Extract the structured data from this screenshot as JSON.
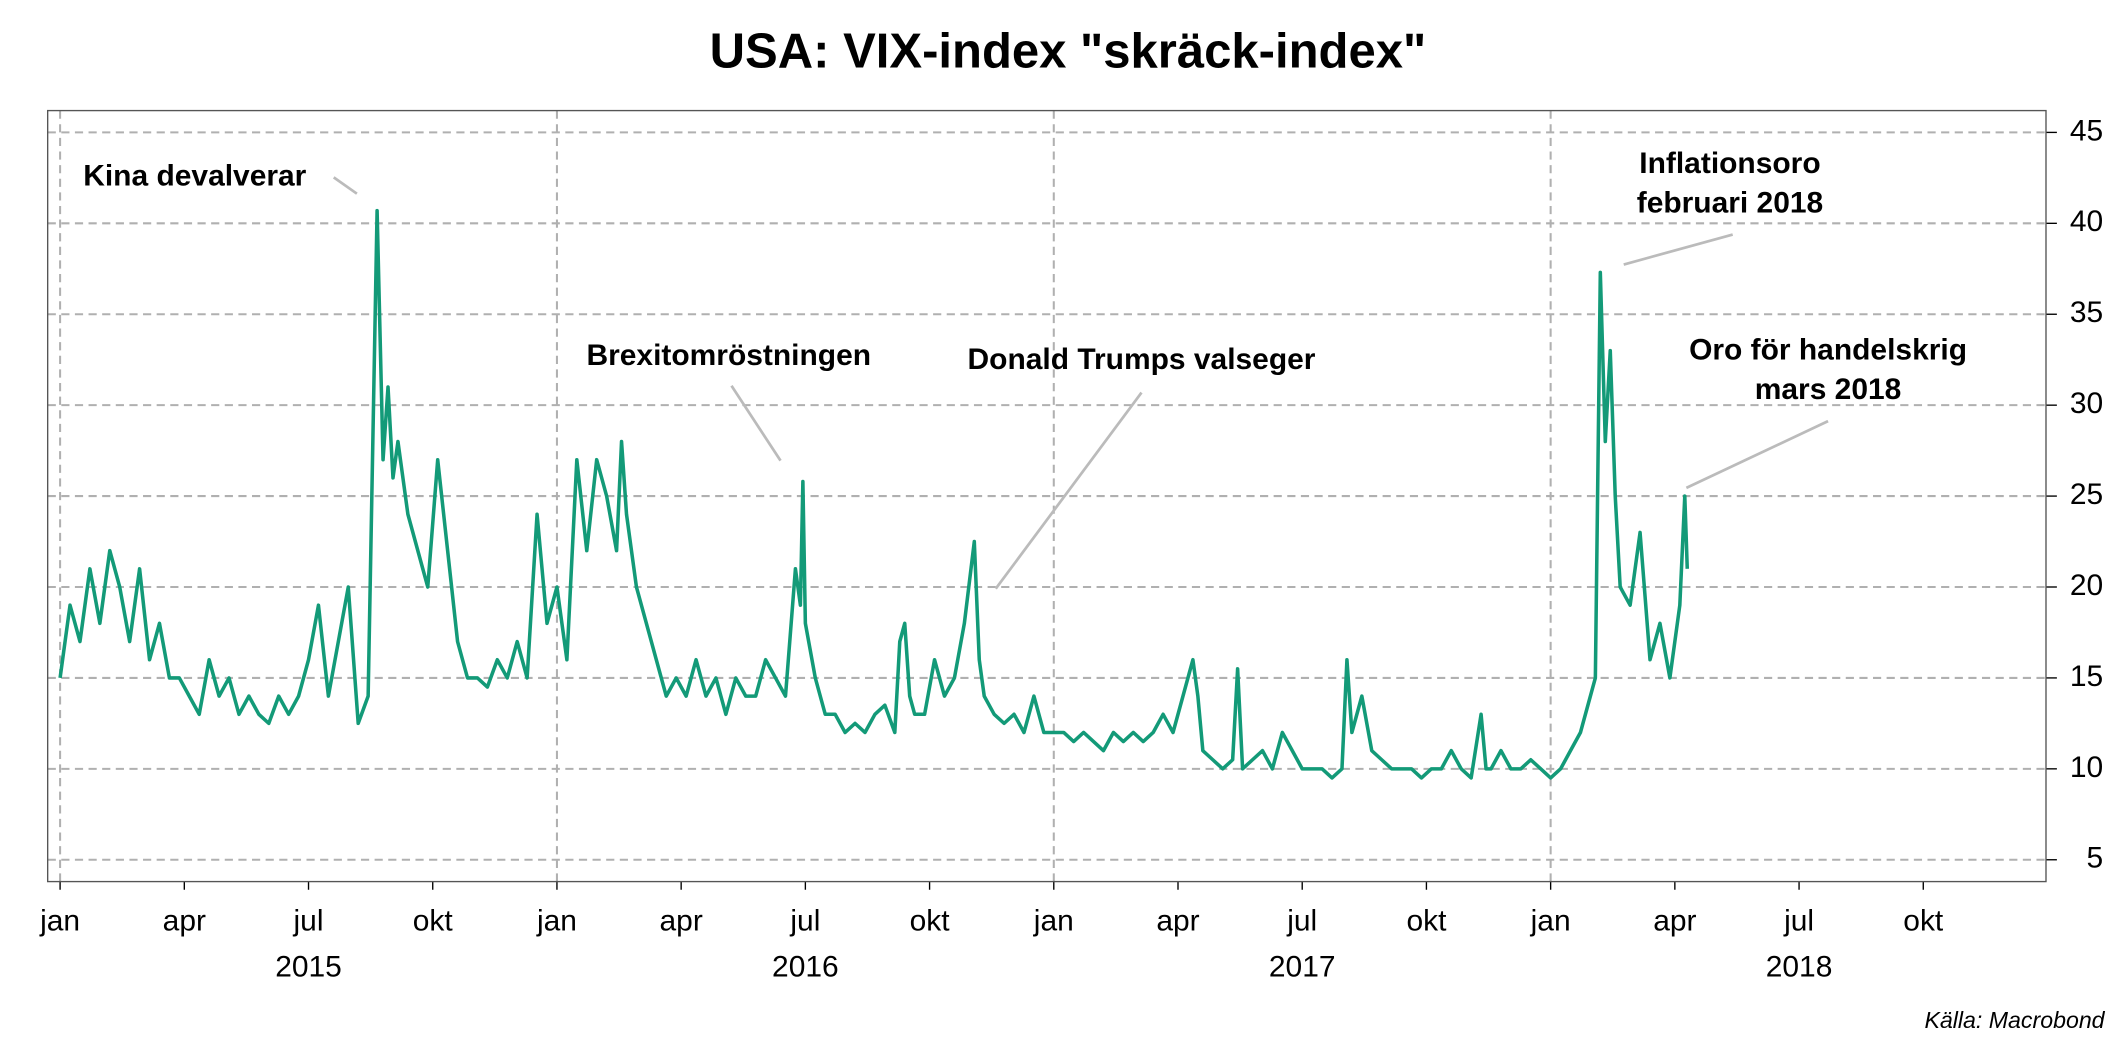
{
  "chart_data": {
    "type": "line",
    "title": "USA: VIX-index \"skräck-index\"",
    "source": "Källa: Macrobond",
    "xlim": [
      2014.975,
      2018.997
    ],
    "ylim": [
      3.8,
      46.2
    ],
    "yticks": [
      5,
      10,
      15,
      20,
      25,
      30,
      35,
      40,
      45
    ],
    "xticks": [
      {
        "value": 2015.0,
        "label": "jan"
      },
      {
        "value": 2015.25,
        "label": "apr"
      },
      {
        "value": 2015.5,
        "label": "jul"
      },
      {
        "value": 2015.75,
        "label": "okt"
      },
      {
        "value": 2016.0,
        "label": "jan"
      },
      {
        "value": 2016.25,
        "label": "apr"
      },
      {
        "value": 2016.5,
        "label": "jul"
      },
      {
        "value": 2016.75,
        "label": "okt"
      },
      {
        "value": 2017.0,
        "label": "jan"
      },
      {
        "value": 2017.25,
        "label": "apr"
      },
      {
        "value": 2017.5,
        "label": "jul"
      },
      {
        "value": 2017.75,
        "label": "okt"
      },
      {
        "value": 2018.0,
        "label": "jan"
      },
      {
        "value": 2018.25,
        "label": "apr"
      },
      {
        "value": 2018.5,
        "label": "jul"
      },
      {
        "value": 2018.75,
        "label": "okt"
      }
    ],
    "year_ticks": [
      {
        "value": 2015.5,
        "label": "2015"
      },
      {
        "value": 2016.5,
        "label": "2016"
      },
      {
        "value": 2017.5,
        "label": "2017"
      },
      {
        "value": 2018.5,
        "label": "2018"
      }
    ],
    "grid": true,
    "x": [
      2015.0,
      2015.02,
      2015.04,
      2015.06,
      2015.08,
      2015.1,
      2015.12,
      2015.14,
      2015.16,
      2015.18,
      2015.2,
      2015.22,
      2015.24,
      2015.26,
      2015.28,
      2015.3,
      2015.32,
      2015.34,
      2015.36,
      2015.38,
      2015.4,
      2015.42,
      2015.44,
      2015.46,
      2015.48,
      2015.5,
      2015.52,
      2015.54,
      2015.56,
      2015.58,
      2015.6,
      2015.62,
      2015.638,
      2015.65,
      2015.66,
      2015.67,
      2015.68,
      2015.7,
      2015.72,
      2015.74,
      2015.76,
      2015.78,
      2015.8,
      2015.82,
      2015.84,
      2015.86,
      2015.88,
      2015.9,
      2015.92,
      2015.94,
      2015.96,
      2015.98,
      2016.0,
      2016.02,
      2016.04,
      2016.06,
      2016.08,
      2016.1,
      2016.12,
      2016.13,
      2016.14,
      2016.16,
      2016.18,
      2016.2,
      2016.22,
      2016.24,
      2016.26,
      2016.28,
      2016.3,
      2016.32,
      2016.34,
      2016.36,
      2016.38,
      2016.4,
      2016.42,
      2016.44,
      2016.46,
      2016.48,
      2016.49,
      2016.495,
      2016.5,
      2016.52,
      2016.54,
      2016.56,
      2016.58,
      2016.6,
      2016.62,
      2016.64,
      2016.66,
      2016.68,
      2016.69,
      2016.7,
      2016.71,
      2016.72,
      2016.74,
      2016.76,
      2016.78,
      2016.8,
      2016.82,
      2016.84,
      2016.85,
      2016.86,
      2016.88,
      2016.9,
      2016.92,
      2016.94,
      2016.96,
      2016.98,
      2017.0,
      2017.02,
      2017.04,
      2017.06,
      2017.08,
      2017.1,
      2017.12,
      2017.14,
      2017.16,
      2017.18,
      2017.2,
      2017.22,
      2017.24,
      2017.26,
      2017.28,
      2017.29,
      2017.3,
      2017.32,
      2017.34,
      2017.36,
      2017.37,
      2017.38,
      2017.4,
      2017.42,
      2017.44,
      2017.46,
      2017.48,
      2017.5,
      2017.52,
      2017.54,
      2017.56,
      2017.58,
      2017.59,
      2017.6,
      2017.62,
      2017.64,
      2017.66,
      2017.68,
      2017.7,
      2017.72,
      2017.74,
      2017.76,
      2017.78,
      2017.8,
      2017.82,
      2017.84,
      2017.86,
      2017.87,
      2017.88,
      2017.9,
      2017.92,
      2017.94,
      2017.96,
      2017.98,
      2018.0,
      2018.02,
      2018.04,
      2018.06,
      2018.08,
      2018.09,
      2018.1,
      2018.11,
      2018.12,
      2018.13,
      2018.14,
      2018.16,
      2018.18,
      2018.2,
      2018.22,
      2018.24,
      2018.26,
      2018.27,
      2018.275
    ],
    "series": [
      {
        "name": "VIX",
        "color": "#139a78",
        "values": [
          15,
          19,
          17,
          21,
          18,
          22,
          20,
          17,
          21,
          16,
          18,
          15,
          15,
          14,
          13,
          16,
          14,
          15,
          13,
          14,
          13,
          12.5,
          14,
          13,
          14,
          16,
          19,
          14,
          17,
          20,
          12.5,
          14,
          40.7,
          27,
          31,
          26,
          28,
          24,
          22,
          20,
          27,
          22,
          17,
          15,
          15,
          14.5,
          16,
          15,
          17,
          15,
          24,
          18,
          20,
          16,
          27,
          22,
          27,
          25,
          22,
          28,
          24,
          20,
          18,
          16,
          14,
          15,
          14,
          16,
          14,
          15,
          13,
          15,
          14,
          14,
          16,
          15,
          14,
          21,
          19,
          25.8,
          18,
          15,
          13,
          13,
          12,
          12.5,
          12,
          13,
          13.5,
          12,
          17,
          18,
          14,
          13,
          13,
          16,
          14,
          15,
          18,
          22.5,
          16,
          14,
          13,
          12.5,
          13,
          12,
          14,
          12,
          12,
          12,
          11.5,
          12,
          11.5,
          11,
          12,
          11.5,
          12,
          11.5,
          12,
          13,
          12,
          14,
          16,
          14,
          11,
          10.5,
          10,
          10.5,
          15.5,
          10,
          10.5,
          11,
          10,
          12,
          11,
          10,
          10,
          10,
          9.5,
          10,
          16,
          12,
          14,
          11,
          10.5,
          10,
          10,
          10,
          9.5,
          10,
          10,
          11,
          10,
          9.5,
          13,
          10,
          10,
          11,
          10,
          10,
          10.5,
          10,
          9.5,
          10,
          11,
          12,
          14,
          15,
          37.3,
          28,
          33,
          25,
          20,
          19,
          23,
          16,
          18,
          15,
          19,
          25,
          21
        ]
      }
    ],
    "annotations": [
      {
        "lines": [
          "Kina devalverar"
        ]
      },
      {
        "lines": [
          "Brexitomröstningen"
        ]
      },
      {
        "lines": [
          "Donald Trumps valseger"
        ]
      },
      {
        "lines": [
          "Inflationsoro",
          "februari 2018"
        ]
      },
      {
        "lines": [
          "Oro för handelskrig",
          "mars 2018"
        ]
      }
    ]
  }
}
